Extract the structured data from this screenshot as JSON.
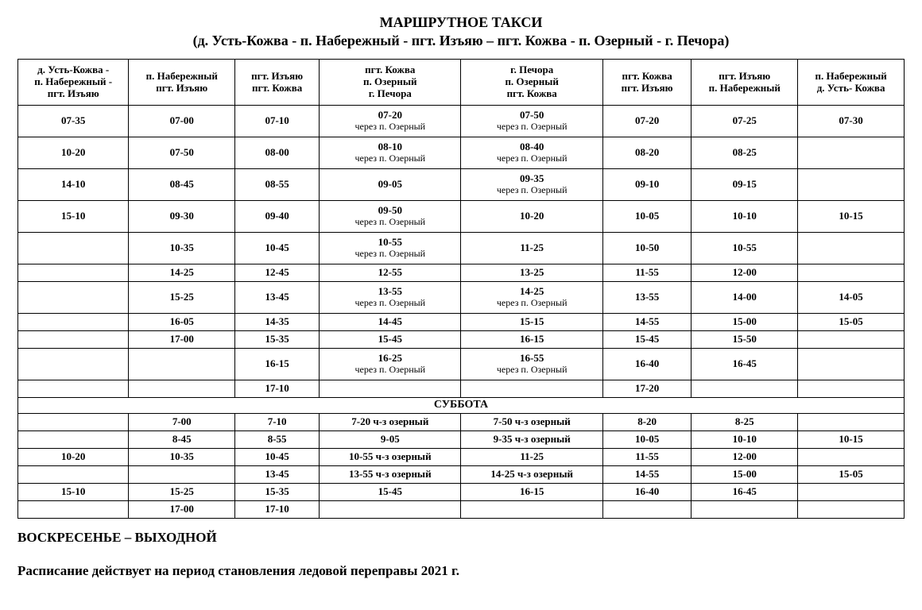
{
  "title": "МАРШРУТНОЕ  ТАКСИ",
  "subtitle": "(д. Усть-Кожва  - п. Набережный - пгт. Изъяю – пгт. Кожва - п. Озерный - г. Печора)",
  "headers": [
    "д. Усть-Кожва -\nп. Набережный -\nпгт. Изъяю",
    "п. Набережный\nпгт. Изъяю",
    "пгт. Изъяю\nпгт. Кожва",
    "пгт. Кожва\nп. Озерный\nг. Печора",
    "г. Печора\nп. Озерный\nпгт. Кожва",
    "пгт. Кожва\nпгт. Изъяю",
    "пгт. Изъяю\nп. Набережный",
    "п. Набережный\nд. Усть- Кожва"
  ],
  "rows": [
    {
      "h": "tall",
      "c": [
        "07-35",
        "07-00",
        "07-10",
        {
          "m": "07-20",
          "s": "через п. Озерный"
        },
        {
          "m": "07-50",
          "s": "через п. Озерный"
        },
        "07-20",
        "07-25",
        "07-30"
      ]
    },
    {
      "h": "tall",
      "c": [
        "10-20",
        "07-50",
        "08-00",
        {
          "m": "08-10",
          "s": "через п. Озерный"
        },
        {
          "m": "08-40",
          "s": "через п. Озерный"
        },
        "08-20",
        "08-25",
        ""
      ]
    },
    {
      "h": "tall",
      "c": [
        "14-10",
        "08-45",
        "08-55",
        "09-05",
        {
          "m": "09-35",
          "s": "через п. Озерный"
        },
        "09-10",
        "09-15",
        ""
      ]
    },
    {
      "h": "tall",
      "c": [
        "15-10",
        "09-30",
        "09-40",
        {
          "m": "09-50",
          "s": "через п. Озерный"
        },
        "10-20",
        "10-05",
        "10-10",
        "10-15"
      ]
    },
    {
      "h": "tall",
      "c": [
        "",
        "10-35",
        "10-45",
        {
          "m": "10-55",
          "s": "через п. Озерный"
        },
        "11-25",
        "10-50",
        "10-55",
        ""
      ]
    },
    {
      "h": "",
      "c": [
        "",
        "14-25",
        "12-45",
        "12-55",
        "13-25",
        "11-55",
        "12-00",
        ""
      ]
    },
    {
      "h": "tall",
      "c": [
        "",
        "15-25",
        "13-45",
        {
          "m": "13-55",
          "s": "через п. Озерный"
        },
        {
          "m": "14-25",
          "s": "через п. Озерный"
        },
        "13-55",
        "14-00",
        "14-05"
      ]
    },
    {
      "h": "",
      "c": [
        "",
        "16-05",
        "14-35",
        "14-45",
        "15-15",
        "14-55",
        "15-00",
        "15-05"
      ]
    },
    {
      "h": "",
      "c": [
        "",
        "17-00",
        "15-35",
        "15-45",
        "16-15",
        "15-45",
        "15-50",
        ""
      ]
    },
    {
      "h": "tall",
      "c": [
        "",
        "",
        "16-15",
        {
          "m": "16-25",
          "s": "через п. Озерный"
        },
        {
          "m": "16-55",
          "s": "через п. Озерный"
        },
        "16-40",
        "16-45",
        ""
      ]
    },
    {
      "h": "",
      "c": [
        "",
        "",
        "17-10",
        "",
        "",
        "17-20",
        "",
        ""
      ]
    }
  ],
  "section_saturday": "СУББОТА",
  "rows_sat": [
    {
      "h": "",
      "c": [
        "",
        "7-00",
        "7-10",
        "7-20  ч-з озерный",
        "7-50   ч-з озерный",
        "8-20",
        "8-25",
        ""
      ]
    },
    {
      "h": "",
      "c": [
        "",
        "8-45",
        "8-55",
        "9-05",
        "9-35  ч-з озерный",
        "10-05",
        "10-10",
        "10-15"
      ]
    },
    {
      "h": "",
      "c": [
        "10-20",
        "10-35",
        "10-45",
        "10-55  ч-з озерный",
        "11-25",
        "11-55",
        "12-00",
        ""
      ]
    },
    {
      "h": "",
      "c": [
        "",
        "",
        "13-45",
        "13-55  ч-з озерный",
        "14-25 ч-з озерный",
        "14-55",
        "15-00",
        "15-05"
      ]
    },
    {
      "h": "",
      "c": [
        "15-10",
        "15-25",
        "15-35",
        "15-45",
        "16-15",
        "16-40",
        "16-45",
        ""
      ]
    },
    {
      "h": "",
      "c": [
        "",
        "17-00",
        "17-10",
        "",
        "",
        "",
        "",
        ""
      ]
    }
  ],
  "footer1": "ВОСКРЕСЕНЬЕ – ВЫХОДНОЙ",
  "footer2": "Расписание действует  на период  становления ледовой переправы  2021 г.",
  "colors": {
    "background": "#ffffff",
    "text": "#000000",
    "border": "#000000"
  },
  "typography": {
    "title_fontsize": 18,
    "header_fontsize": 13,
    "cell_fontsize": 13,
    "footer_fontsize": 17,
    "font_family": "Times New Roman"
  }
}
